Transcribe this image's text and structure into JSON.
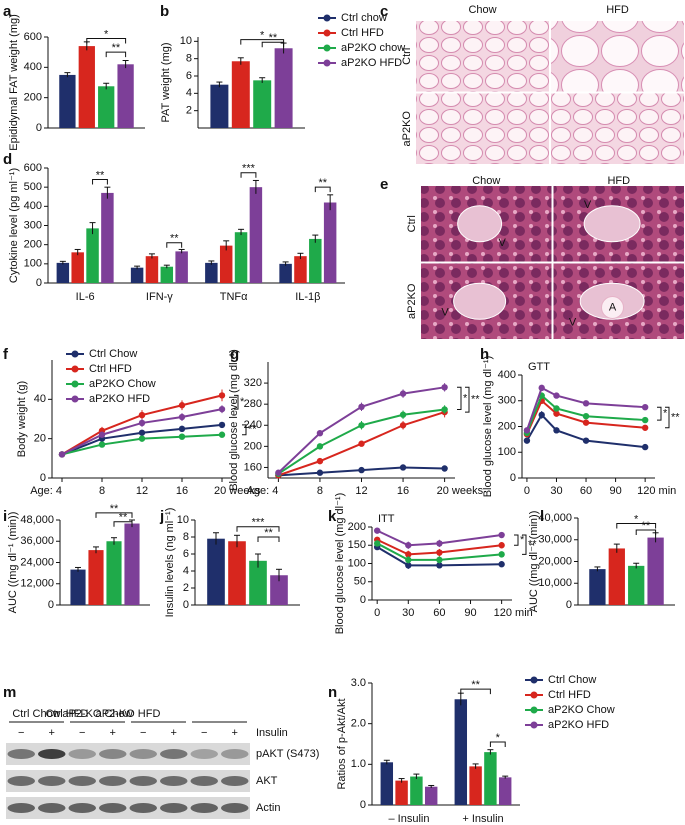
{
  "chart_data": [
    {
      "panel": "a",
      "type": "bar",
      "ylabel": "Epididymal FAT weight (mg)",
      "values": [
        350,
        540,
        275,
        420
      ],
      "errors": [
        15,
        28,
        20,
        25
      ],
      "colors": [
        "#1f2f6b",
        "#d7261e",
        "#1faa4a",
        "#7d3f98"
      ],
      "ylim": [
        0,
        600
      ],
      "yticks": [
        0,
        200,
        400,
        600
      ],
      "annotations": [
        {
          "text": "*",
          "from": 1,
          "to": 3,
          "y": 590
        },
        {
          "text": "**",
          "from": 2,
          "to": 3,
          "y": 500
        }
      ]
    },
    {
      "panel": "b",
      "type": "bar",
      "ylabel": "PAT weight (mg)",
      "categories": [
        null
      ],
      "legend": "right",
      "series": [
        {
          "name": "Ctrl chow",
          "color": "#1f2f6b",
          "values": [
            5.0
          ],
          "errors": [
            0.3
          ]
        },
        {
          "name": "Ctrl HFD",
          "color": "#d7261e",
          "values": [
            7.7
          ],
          "errors": [
            0.4
          ]
        },
        {
          "name": "aP2KO chow",
          "color": "#1faa4a",
          "values": [
            5.5
          ],
          "errors": [
            0.3
          ]
        },
        {
          "name": "aP2KO HFD",
          "color": "#7d3f98",
          "values": [
            9.2
          ],
          "errors": [
            0.6
          ]
        }
      ],
      "ylim": [
        0,
        10.5
      ],
      "yticks": [
        2,
        4,
        6,
        8,
        10
      ],
      "annotations": [
        {
          "text": "*",
          "from": 1,
          "to": 3,
          "y": 10.2
        },
        {
          "text": "**",
          "from": 2,
          "to": 3,
          "y": 9.9
        }
      ]
    },
    {
      "panel": "d",
      "type": "bar",
      "ylabel": "Cytokine level (pg ml⁻¹)",
      "categories": [
        "IL-6",
        "IFN-γ",
        "TNFα",
        "IL-1β"
      ],
      "series": [
        {
          "color": "#1f2f6b",
          "values": [
            105,
            80,
            105,
            100
          ],
          "errors": [
            8,
            8,
            10,
            10
          ]
        },
        {
          "color": "#d7261e",
          "values": [
            160,
            140,
            195,
            140
          ],
          "errors": [
            15,
            12,
            25,
            15
          ]
        },
        {
          "color": "#1faa4a",
          "values": [
            285,
            85,
            265,
            230
          ],
          "errors": [
            30,
            8,
            15,
            20
          ]
        },
        {
          "color": "#7d3f98",
          "values": [
            470,
            165,
            500,
            420
          ],
          "errors": [
            30,
            10,
            35,
            40
          ]
        }
      ],
      "ylim": [
        0,
        600
      ],
      "yticks": [
        0,
        100,
        200,
        300,
        400,
        500,
        600
      ],
      "annotations": [
        {
          "text": "**",
          "group": 0,
          "from": 2,
          "to": 3,
          "y": 540
        },
        {
          "text": "**",
          "group": 1,
          "from": 2,
          "to": 3,
          "y": 210
        },
        {
          "text": "***",
          "group": 2,
          "from": 2,
          "to": 3,
          "y": 575
        },
        {
          "text": "**",
          "group": 3,
          "from": 2,
          "to": 3,
          "y": 500
        }
      ]
    },
    {
      "panel": "f",
      "type": "line",
      "ylabel": "Body weight (g)",
      "legend": "upper left",
      "x": [
        4,
        8,
        12,
        16,
        20
      ],
      "series": [
        {
          "name": "Ctrl Chow",
          "color": "#1f2f6b",
          "values": [
            12,
            20,
            23,
            25,
            27
          ],
          "errors": [
            1,
            1.5,
            1.5,
            1.5,
            1.5
          ]
        },
        {
          "name": "Ctrl HFD",
          "color": "#d7261e",
          "values": [
            12,
            24,
            32,
            37,
            42
          ],
          "errors": [
            1,
            2,
            2.5,
            2.5,
            3
          ]
        },
        {
          "name": "aP2KO Chow",
          "color": "#1faa4a",
          "values": [
            12,
            17,
            20,
            21,
            22
          ],
          "errors": [
            1,
            1,
            1.5,
            1.5,
            1.5
          ]
        },
        {
          "name": "aP2KO HFD",
          "color": "#7d3f98",
          "values": [
            12,
            22,
            28,
            31,
            35
          ],
          "errors": [
            1,
            1.5,
            2,
            2,
            2
          ]
        }
      ],
      "xlim": [
        3,
        21
      ],
      "xticks": [
        {
          "value": 4,
          "label": "Age: 4"
        },
        8,
        12,
        16,
        {
          "value": 20,
          "label": "20 weeks"
        }
      ],
      "ylim": [
        0,
        60
      ],
      "yticks": [
        0,
        20,
        40
      ],
      "annotations": [
        {
          "text": "*",
          "y": [
            42,
            35
          ]
        },
        {
          "text": "**",
          "y": [
            27,
            22
          ]
        }
      ]
    },
    {
      "panel": "g",
      "type": "line",
      "ylabel": "Blood glucose level (mg dl⁻¹)",
      "x": [
        4,
        8,
        12,
        16,
        20
      ],
      "series": [
        {
          "color": "#1f2f6b",
          "values": [
            145,
            150,
            155,
            160,
            158
          ],
          "errors": [
            3,
            3,
            3,
            3,
            3
          ]
        },
        {
          "color": "#d7261e",
          "values": [
            145,
            172,
            205,
            240,
            265
          ],
          "errors": [
            3,
            4,
            5,
            8,
            10
          ]
        },
        {
          "color": "#1faa4a",
          "values": [
            148,
            200,
            240,
            260,
            270
          ],
          "errors": [
            3,
            5,
            8,
            8,
            8
          ]
        },
        {
          "color": "#7d3f98",
          "values": [
            150,
            225,
            275,
            300,
            312
          ],
          "errors": [
            3,
            5,
            8,
            8,
            8
          ]
        }
      ],
      "xlim": [
        3,
        21
      ],
      "xticks": [
        {
          "value": 4,
          "label": "Age: 4"
        },
        8,
        12,
        16,
        {
          "value": 20,
          "label": "20 weeks"
        }
      ],
      "ylim": [
        140,
        360
      ],
      "yticks": [
        160,
        200,
        240,
        280,
        320
      ],
      "annotations": [
        {
          "text": "*",
          "y": [
            312,
            270
          ]
        },
        {
          "text": "**",
          "y": [
            312,
            265
          ]
        }
      ]
    },
    {
      "panel": "h",
      "type": "line",
      "title": "GTT",
      "ylabel": "Blood glucose level (mg dl⁻¹)",
      "x": [
        0,
        15,
        30,
        60,
        120
      ],
      "series": [
        {
          "color": "#1f2f6b",
          "values": [
            145,
            245,
            185,
            145,
            120
          ],
          "errors": [
            10,
            15,
            10,
            8,
            8
          ]
        },
        {
          "color": "#d7261e",
          "values": [
            170,
            300,
            250,
            215,
            195
          ],
          "errors": [
            10,
            12,
            10,
            8,
            8
          ]
        },
        {
          "color": "#1faa4a",
          "values": [
            175,
            320,
            270,
            240,
            225
          ],
          "errors": [
            10,
            12,
            10,
            8,
            8
          ]
        },
        {
          "color": "#7d3f98",
          "values": [
            185,
            350,
            320,
            290,
            275
          ],
          "errors": [
            10,
            10,
            10,
            8,
            8
          ]
        }
      ],
      "xlim": [
        -5,
        130
      ],
      "xticks": [
        0,
        30,
        60,
        90,
        {
          "value": 120,
          "label": "120 min"
        }
      ],
      "ylim": [
        0,
        400
      ],
      "yticks": [
        0,
        100,
        200,
        300,
        400
      ],
      "annotations": [
        {
          "text": "*",
          "y": [
            275,
            225
          ]
        },
        {
          "text": "**",
          "y": [
            275,
            195
          ]
        }
      ]
    },
    {
      "panel": "i",
      "type": "bar",
      "ylabel": "AUC ((mg dl⁻¹ (min))",
      "values": [
        20000,
        31000,
        36000,
        46000
      ],
      "errors": [
        1200,
        1800,
        2000,
        2000
      ],
      "colors": [
        "#1f2f6b",
        "#d7261e",
        "#1faa4a",
        "#7d3f98"
      ],
      "ylim": [
        0,
        48000
      ],
      "yticks": [
        0,
        {
          "value": 12000,
          "label": "12,000"
        },
        {
          "value": 24000,
          "label": "24,000"
        },
        {
          "value": 36000,
          "label": "36,000"
        },
        {
          "value": 48000,
          "label": "48,000"
        }
      ],
      "annotations": [
        {
          "text": "**",
          "from": 1,
          "to": 3,
          "y": 52000
        },
        {
          "text": "**",
          "from": 2,
          "to": 3,
          "y": 47000
        }
      ]
    },
    {
      "panel": "j",
      "type": "bar",
      "ylabel": "Insulin levels (ng ml⁻¹)",
      "values": [
        7.8,
        7.5,
        5.2,
        3.5
      ],
      "errors": [
        0.7,
        0.7,
        0.8,
        0.7
      ],
      "colors": [
        "#1f2f6b",
        "#d7261e",
        "#1faa4a",
        "#7d3f98"
      ],
      "ylim": [
        0,
        10
      ],
      "yticks": [
        0,
        2,
        4,
        6,
        8,
        10
      ],
      "annotations": [
        {
          "text": "***",
          "from": 1,
          "to": 3,
          "y": 9.2
        },
        {
          "text": "**",
          "from": 2,
          "to": 3,
          "y": 8.0
        }
      ]
    },
    {
      "panel": "k",
      "type": "line",
      "title": "ITT",
      "ylabel": "Blood glucose level (mg dl⁻¹)",
      "x": [
        0,
        30,
        60,
        120
      ],
      "series": [
        {
          "color": "#1f2f6b",
          "values": [
            145,
            95,
            95,
            98
          ],
          "errors": [
            8,
            10,
            8,
            8
          ]
        },
        {
          "color": "#d7261e",
          "values": [
            165,
            125,
            130,
            150
          ],
          "errors": [
            8,
            10,
            10,
            8
          ]
        },
        {
          "color": "#1faa4a",
          "values": [
            155,
            110,
            110,
            125
          ],
          "errors": [
            8,
            10,
            10,
            8
          ]
        },
        {
          "color": "#7d3f98",
          "values": [
            190,
            150,
            155,
            178
          ],
          "errors": [
            8,
            10,
            10,
            8
          ]
        }
      ],
      "xlim": [
        -5,
        130
      ],
      "xticks": [
        0,
        30,
        60,
        90,
        {
          "value": 120,
          "label": "120 min"
        }
      ],
      "ylim": [
        0,
        200
      ],
      "yticks": [
        0,
        50,
        100,
        150,
        200
      ],
      "annotations": [
        {
          "text": "*",
          "y": [
            178,
            150
          ]
        },
        {
          "text": "**",
          "y": [
            178,
            125
          ]
        }
      ]
    },
    {
      "panel": "l",
      "type": "bar",
      "ylabel": "AUC ((mg dl⁻¹ (min))",
      "values": [
        16500,
        26000,
        18000,
        31000
      ],
      "errors": [
        1000,
        2000,
        1200,
        2200
      ],
      "colors": [
        "#1f2f6b",
        "#d7261e",
        "#1faa4a",
        "#7d3f98"
      ],
      "ylim": [
        0,
        40000
      ],
      "yticks": [
        0,
        {
          "value": 10000,
          "label": "10,000"
        },
        {
          "value": 20000,
          "label": "20,000"
        },
        {
          "value": 30000,
          "label": "30,000"
        },
        {
          "value": 40000,
          "label": "40,000"
        }
      ],
      "annotations": [
        {
          "text": "*",
          "from": 1,
          "to": 3,
          "y": 37500
        },
        {
          "text": "**",
          "from": 2,
          "to": 3,
          "y": 34500
        }
      ]
    },
    {
      "panel": "n",
      "type": "bar",
      "ylabel": "Ratios of p-Akt/Akt",
      "legend": "right",
      "categories": [
        "– Insulin",
        "+ Insulin"
      ],
      "series": [
        {
          "name": "Ctrl Chow",
          "color": "#1f2f6b",
          "values": [
            1.05,
            2.6
          ],
          "errors": [
            0.05,
            0.15
          ]
        },
        {
          "name": "Ctrl HFD",
          "color": "#d7261e",
          "values": [
            0.6,
            0.95
          ],
          "errors": [
            0.05,
            0.06
          ]
        },
        {
          "name": "aP2KO Chow",
          "color": "#1faa4a",
          "values": [
            0.7,
            1.3
          ],
          "errors": [
            0.06,
            0.06
          ]
        },
        {
          "name": "aP2KO HFD",
          "color": "#7d3f98",
          "values": [
            0.45,
            0.68
          ],
          "errors": [
            0.03,
            0.03
          ]
        }
      ],
      "ylim": [
        0,
        3.0
      ],
      "yticks": [
        0,
        {
          "value": 1,
          "label": "1.0"
        },
        {
          "value": 2,
          "label": "2.0"
        },
        {
          "value": 3,
          "label": "3.0"
        }
      ],
      "annotations": [
        {
          "text": "**",
          "group": 1,
          "from": 0,
          "to": 2,
          "y": 2.85
        },
        {
          "text": "*",
          "group": 1,
          "from": 2,
          "to": 3,
          "y": 1.55
        }
      ]
    }
  ],
  "histology": [
    {
      "panel": "c",
      "columns": [
        "Chow",
        "HFD"
      ],
      "rows": [
        "Ctrl",
        "aP2KO"
      ]
    },
    {
      "panel": "e",
      "columns": [
        "Chow",
        "HFD"
      ],
      "rows": [
        "Ctrl",
        "aP2KO"
      ],
      "marks": [
        "V",
        "A"
      ]
    }
  ],
  "blot": {
    "panel": "m",
    "groups": [
      "Ctrl Chow",
      "Ctrl HFD",
      "aP2-KO Chow",
      "aP2-KO HFD"
    ],
    "treatment": "Insulin",
    "signs": [
      "−",
      "+"
    ],
    "bands": [
      "pAKT (S473)",
      "AKT",
      "Actin"
    ]
  }
}
